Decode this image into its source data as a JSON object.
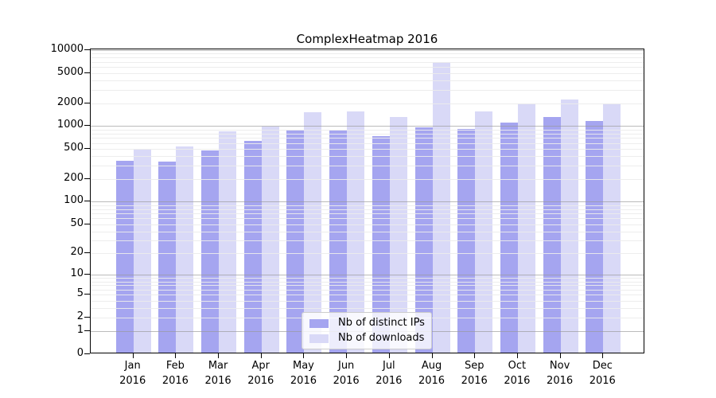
{
  "title": "ComplexHeatmap 2016",
  "legend": {
    "items": [
      {
        "label": "Nb of distinct IPs",
        "color": "#a5a5f0"
      },
      {
        "label": "Nb of downloads",
        "color": "#d9d9f7"
      }
    ]
  },
  "chart_data": {
    "type": "bar",
    "title": "ComplexHeatmap 2016",
    "scale": "log1p",
    "categories": [
      "Jan",
      "Feb",
      "Mar",
      "Apr",
      "May",
      "Jun",
      "Jul",
      "Aug",
      "Sep",
      "Oct",
      "Nov",
      "Dec"
    ],
    "year": "2016",
    "series": [
      {
        "name": "Nb of distinct IPs",
        "color": "#a5a5f0",
        "values": [
          340,
          325,
          465,
          610,
          860,
          850,
          720,
          920,
          895,
          1070,
          1285,
          1140
        ]
      },
      {
        "name": "Nb of downloads",
        "color": "#d9d9f7",
        "values": [
          470,
          520,
          815,
          950,
          1480,
          1490,
          1265,
          6800,
          1490,
          1925,
          2170,
          1925
        ]
      }
    ],
    "yticks": [
      10000,
      5000,
      2000,
      1000,
      500,
      200,
      100,
      50,
      20,
      10,
      5,
      2,
      1,
      0
    ],
    "ylim": [
      0,
      10000
    ],
    "grid": {
      "major_at": [
        1,
        10,
        100,
        1000,
        10000
      ],
      "minor": "2-9 per decade"
    },
    "legend_position": "lower center"
  }
}
